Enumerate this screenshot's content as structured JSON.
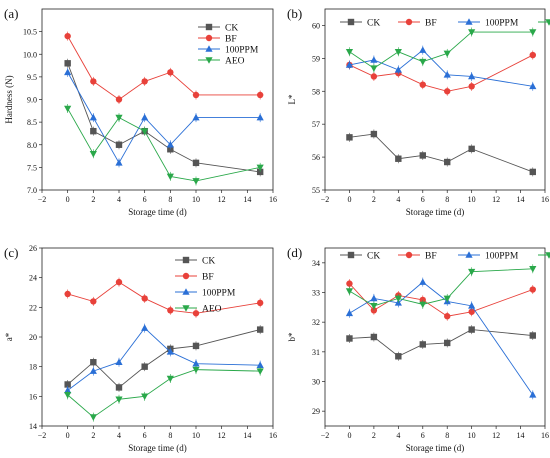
{
  "colors": {
    "CK": "#555555",
    "BF": "#e8413a",
    "100PPM": "#2a6fd6",
    "AEO": "#2aa84a"
  },
  "chart_data": [
    {
      "type": "line",
      "panel": "(a)",
      "xlabel": "Storage time (d)",
      "ylabel": "Hardness (N)",
      "xlim": [
        -2,
        16
      ],
      "ylim": [
        7.0,
        11.0
      ],
      "xticks": [
        -2,
        0,
        2,
        4,
        6,
        8,
        10,
        12,
        14,
        16
      ],
      "yticks": [
        "7.0",
        "7.5",
        "8.0",
        "8.5",
        "9.0",
        "9.5",
        "10.0",
        "10.5"
      ],
      "x": [
        0,
        2,
        4,
        6,
        8,
        10,
        15
      ],
      "legend_position": "top-right",
      "grid": false,
      "series": [
        {
          "name": "CK",
          "values": [
            9.8,
            8.3,
            8.0,
            8.3,
            7.9,
            7.6,
            7.4
          ]
        },
        {
          "name": "BF",
          "values": [
            10.4,
            9.4,
            9.0,
            9.4,
            9.6,
            9.1,
            9.1
          ]
        },
        {
          "name": "100PPM",
          "values": [
            9.6,
            8.6,
            7.6,
            8.6,
            8.0,
            8.6,
            8.6
          ]
        },
        {
          "name": "AEO",
          "values": [
            8.8,
            7.8,
            8.6,
            8.3,
            7.3,
            7.2,
            7.5
          ]
        }
      ]
    },
    {
      "type": "line",
      "panel": "(b)",
      "xlabel": "Storage time (d)",
      "ylabel": "L*",
      "xlim": [
        -2,
        16
      ],
      "ylim": [
        55,
        60.5
      ],
      "xticks": [
        -2,
        0,
        2,
        4,
        6,
        8,
        10,
        12,
        14,
        16
      ],
      "yticks": [
        "55",
        "56",
        "57",
        "58",
        "59",
        "60"
      ],
      "x": [
        0,
        2,
        4,
        6,
        8,
        10,
        15
      ],
      "legend_position": "top",
      "grid": false,
      "series": [
        {
          "name": "CK",
          "values": [
            56.6,
            56.7,
            55.95,
            56.05,
            55.85,
            56.25,
            55.55
          ]
        },
        {
          "name": "BF",
          "values": [
            58.8,
            58.45,
            58.55,
            58.2,
            58.0,
            58.15,
            59.1
          ]
        },
        {
          "name": "100PPM",
          "values": [
            58.8,
            58.95,
            58.65,
            59.25,
            58.5,
            58.45,
            58.15
          ]
        },
        {
          "name": "AEO",
          "values": [
            59.2,
            58.7,
            59.2,
            58.9,
            59.15,
            59.8,
            59.8
          ]
        }
      ]
    },
    {
      "type": "line",
      "panel": "(c)",
      "xlabel": "Storage time (d)",
      "ylabel": "a*",
      "xlim": [
        -2,
        16
      ],
      "ylim": [
        14,
        26
      ],
      "xticks": [
        -2,
        0,
        2,
        4,
        6,
        8,
        10,
        12,
        14,
        16
      ],
      "yticks": [
        "14",
        "16",
        "18",
        "20",
        "22",
        "24",
        "26"
      ],
      "x": [
        0,
        2,
        4,
        6,
        8,
        10,
        15
      ],
      "legend_position": "top-right",
      "grid": false,
      "series": [
        {
          "name": "CK",
          "values": [
            16.8,
            18.3,
            16.6,
            18.0,
            19.2,
            19.4,
            20.5
          ]
        },
        {
          "name": "BF",
          "values": [
            22.9,
            22.4,
            23.7,
            22.6,
            21.8,
            21.6,
            22.3
          ]
        },
        {
          "name": "100PPM",
          "values": [
            16.4,
            17.7,
            18.3,
            20.6,
            19.0,
            18.2,
            18.1
          ]
        },
        {
          "name": "AEO",
          "values": [
            16.1,
            14.6,
            15.8,
            16.0,
            17.2,
            17.8,
            17.7
          ]
        }
      ]
    },
    {
      "type": "line",
      "panel": "(d)",
      "xlabel": "Storage time (d)",
      "ylabel": "b*",
      "xlim": [
        -2,
        16
      ],
      "ylim": [
        28.5,
        34.5
      ],
      "xticks": [
        -2,
        0,
        2,
        4,
        6,
        8,
        10,
        12,
        14,
        16
      ],
      "yticks": [
        "29",
        "30",
        "31",
        "32",
        "33",
        "34"
      ],
      "x": [
        0,
        2,
        4,
        6,
        8,
        10,
        15
      ],
      "legend_position": "top",
      "grid": false,
      "series": [
        {
          "name": "CK",
          "values": [
            31.45,
            31.5,
            30.85,
            31.25,
            31.3,
            31.75,
            31.55
          ]
        },
        {
          "name": "BF",
          "values": [
            33.3,
            32.4,
            32.9,
            32.75,
            32.2,
            32.35,
            33.1
          ]
        },
        {
          "name": "100PPM",
          "values": [
            32.3,
            32.8,
            32.65,
            33.35,
            32.7,
            32.55,
            29.55
          ]
        },
        {
          "name": "AEO",
          "values": [
            33.05,
            32.55,
            32.8,
            32.6,
            32.8,
            33.7,
            33.8
          ]
        }
      ]
    }
  ]
}
